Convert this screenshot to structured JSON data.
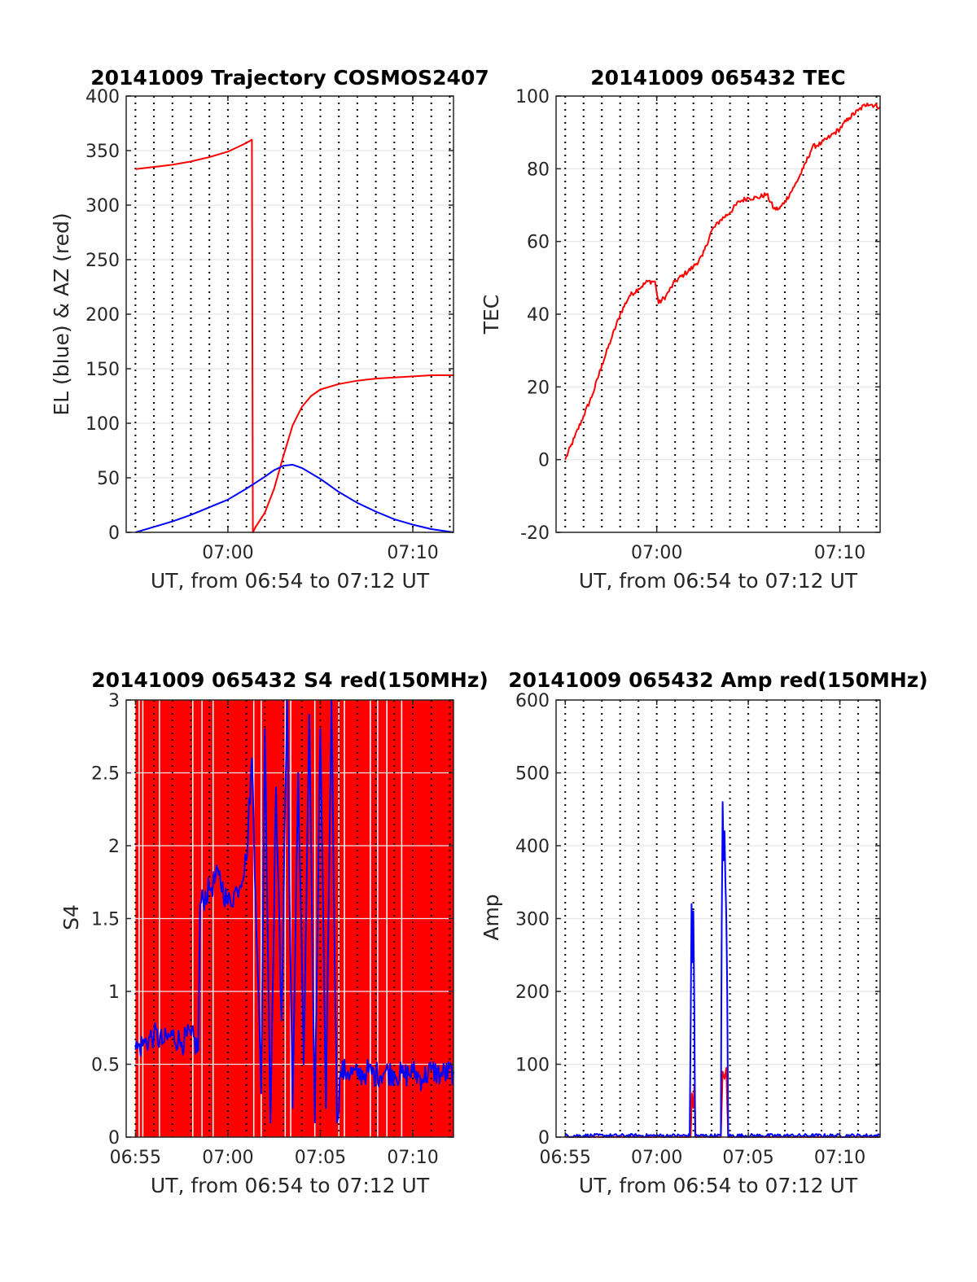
{
  "chart_data": [
    {
      "id": "traj",
      "type": "line",
      "title": "20141009 Trajectory COSMOS2407",
      "xlabel": "UT, from 06:54 to 07:12 UT",
      "ylabel": "EL (blue) & AZ (red)",
      "xlim": [
        414.5,
        432.2
      ],
      "ylim": [
        0,
        400
      ],
      "yticks": [
        0,
        50,
        100,
        150,
        200,
        250,
        300,
        350,
        400
      ],
      "xticks": [
        {
          "v": 420,
          "label": "07:00"
        },
        {
          "v": 430,
          "label": "07:10"
        }
      ],
      "hgrid": [
        0,
        50,
        100,
        150,
        200,
        250,
        300,
        350,
        400
      ],
      "vgrid": [],
      "minor_x": [
        415,
        416,
        417,
        418,
        419,
        420,
        421,
        422,
        423,
        424,
        425,
        426,
        427,
        428,
        429,
        430,
        431,
        432
      ],
      "series": [
        {
          "color": "#ff0000",
          "x": [
            415.0,
            416.0,
            417.0,
            418.0,
            419.0,
            420.0,
            420.5,
            421.0,
            421.3,
            421.35,
            421.5,
            422.0,
            422.5,
            423.0,
            423.5,
            424.0,
            424.5,
            425.0,
            426.0,
            427.0,
            428.0,
            429.0,
            430.0,
            431.0,
            432.2
          ],
          "values": [
            333,
            335,
            337,
            340,
            344,
            349,
            353,
            357,
            360,
            0,
            5,
            18,
            40,
            70,
            98,
            115,
            125,
            131,
            136,
            139,
            141,
            142,
            143,
            144,
            144
          ]
        },
        {
          "color": "#0000ff",
          "x": [
            415.0,
            416.0,
            417.0,
            418.0,
            419.0,
            420.0,
            421.0,
            422.0,
            422.5,
            423.0,
            423.5,
            424.0,
            425.0,
            426.0,
            427.0,
            428.0,
            429.0,
            430.0,
            431.0,
            432.2
          ],
          "values": [
            0,
            5,
            10,
            16,
            23,
            30,
            40,
            51,
            57,
            61,
            62,
            59,
            49,
            37,
            27,
            19,
            12,
            7,
            3,
            0
          ]
        }
      ]
    },
    {
      "id": "tec",
      "type": "line",
      "title": "20141009 065432 TEC",
      "xlabel": "UT, from 06:54 to 07:12 UT",
      "ylabel": "TEC",
      "xlim": [
        414.5,
        432.2
      ],
      "ylim": [
        -20,
        100
      ],
      "yticks": [
        -20,
        0,
        20,
        40,
        60,
        80,
        100
      ],
      "xticks": [
        {
          "v": 420,
          "label": "07:00"
        },
        {
          "v": 430,
          "label": "07:10"
        }
      ],
      "hgrid": [
        0,
        20,
        40,
        60,
        80,
        100
      ],
      "vgrid": [
        420,
        430
      ],
      "minor_x": [
        415,
        416,
        417,
        418,
        419,
        420,
        421,
        422,
        423,
        424,
        425,
        426,
        427,
        428,
        429,
        430,
        431,
        432
      ],
      "series": [
        {
          "color": "#ff0000",
          "noise": 0.7,
          "x": [
            415.0,
            415.5,
            416.0,
            416.5,
            417.0,
            417.5,
            418.0,
            418.5,
            419.0,
            419.5,
            419.9,
            420.1,
            420.5,
            421.0,
            421.5,
            422.0,
            422.5,
            423.0,
            423.5,
            424.0,
            424.5,
            425.0,
            425.5,
            426.0,
            426.4,
            426.7,
            427.0,
            427.5,
            428.0,
            428.5,
            429.0,
            429.5,
            430.0,
            430.5,
            431.0,
            431.5,
            432.2
          ],
          "values": [
            0,
            6,
            12,
            18,
            26,
            33,
            40,
            45,
            47,
            49,
            49,
            43,
            45,
            49,
            51,
            53,
            56,
            63,
            66,
            68,
            71,
            72,
            72,
            73,
            69,
            69,
            71,
            75,
            80,
            86,
            87,
            89,
            91,
            94,
            96,
            98,
            97
          ]
        }
      ]
    },
    {
      "id": "s4",
      "type": "line",
      "title": "20141009 065432 S4 red(150MHz)",
      "xlabel": "UT, from 06:54 to 07:12 UT",
      "ylabel": "S4",
      "xlim": [
        414.5,
        432.2
      ],
      "ylim": [
        0,
        3
      ],
      "yticks": [
        0,
        0.5,
        1,
        1.5,
        2,
        2.5,
        3
      ],
      "xticks": [
        {
          "v": 415,
          "label": "06:55"
        },
        {
          "v": 420,
          "label": "07:00"
        },
        {
          "v": 425,
          "label": "07:05"
        },
        {
          "v": 430,
          "label": "07:10"
        }
      ],
      "hgrid": [
        0.5,
        1,
        1.5,
        2,
        2.5
      ],
      "vgrid": [],
      "minor_x": [
        415,
        416,
        417,
        418,
        419,
        420,
        421,
        422,
        423,
        424,
        425,
        426,
        427,
        428,
        429,
        430,
        431,
        432
      ],
      "red_fill": {
        "color": "#ff0000",
        "x_start": 415.0,
        "x_end": 432.2,
        "white_gaps": [
          415.2,
          415.4,
          416.3,
          418.1,
          418.6,
          419.2,
          421.4,
          421.8,
          423.1,
          423.4,
          424.7,
          426.0,
          426.3,
          427.7,
          428.1,
          428.6,
          429.4
        ]
      },
      "series": [
        {
          "color": "#0000ff",
          "noise": 0.09,
          "x": [
            415.0,
            415.5,
            416.0,
            416.5,
            417.0,
            417.5,
            418.0,
            418.4,
            418.5,
            419.0,
            419.5,
            420.0,
            420.5,
            421.0,
            421.3,
            421.6,
            421.8,
            422.0,
            422.3,
            422.6,
            422.9,
            423.2,
            423.5,
            423.8,
            424.1,
            424.4,
            424.7,
            425.0,
            425.3,
            425.6,
            425.9,
            426.1,
            426.5,
            427.0,
            427.5,
            428.0,
            428.5,
            429.0,
            429.5,
            430.0,
            430.5,
            431.0,
            431.5,
            432.2
          ],
          "values": [
            0.6,
            0.65,
            0.7,
            0.65,
            0.7,
            0.65,
            0.7,
            0.6,
            1.6,
            1.7,
            1.8,
            1.6,
            1.7,
            1.9,
            2.6,
            1.2,
            0.3,
            2.8,
            0.1,
            2.4,
            0.8,
            3.0,
            0.2,
            2.5,
            0.5,
            2.9,
            0.1,
            2.8,
            0.2,
            3.0,
            0.1,
            0.45,
            0.45,
            0.42,
            0.45,
            0.43,
            0.45,
            0.44,
            0.42,
            0.45,
            0.4,
            0.46,
            0.43,
            0.45
          ]
        }
      ]
    },
    {
      "id": "amp",
      "type": "line",
      "title": "20141009 065432 Amp red(150MHz)",
      "xlabel": "UT, from 06:54 to 07:12 UT",
      "ylabel": "Amp",
      "xlim": [
        414.5,
        432.2
      ],
      "ylim": [
        0,
        600
      ],
      "yticks": [
        0,
        100,
        200,
        300,
        400,
        500,
        600
      ],
      "xticks": [
        {
          "v": 415,
          "label": "06:55"
        },
        {
          "v": 420,
          "label": "07:00"
        },
        {
          "v": 425,
          "label": "07:05"
        },
        {
          "v": 430,
          "label": "07:10"
        }
      ],
      "hgrid": [
        100,
        200,
        300,
        400,
        500,
        600
      ],
      "vgrid": [],
      "minor_x": [
        415,
        416,
        417,
        418,
        419,
        420,
        421,
        422,
        423,
        424,
        425,
        426,
        427,
        428,
        429,
        430,
        431,
        432
      ],
      "series": [
        {
          "color": "#ff0000",
          "noise": 0.5,
          "x": [
            415.0,
            421.85,
            421.92,
            422.0,
            422.05,
            422.12,
            423.5,
            423.6,
            423.7,
            423.8,
            423.9,
            432.2
          ],
          "values": [
            0,
            0,
            60,
            40,
            70,
            0,
            0,
            90,
            80,
            95,
            0,
            0
          ]
        },
        {
          "color": "#0000ff",
          "noise": 2.5,
          "x": [
            415.0,
            421.8,
            421.85,
            421.9,
            421.95,
            422.0,
            422.05,
            422.1,
            423.5,
            423.55,
            423.6,
            423.65,
            423.7,
            423.75,
            423.8,
            423.85,
            423.9,
            432.2
          ],
          "values": [
            2,
            2,
            150,
            320,
            240,
            310,
            180,
            2,
            2,
            300,
            460,
            380,
            420,
            350,
            300,
            200,
            2,
            2
          ]
        }
      ]
    }
  ]
}
